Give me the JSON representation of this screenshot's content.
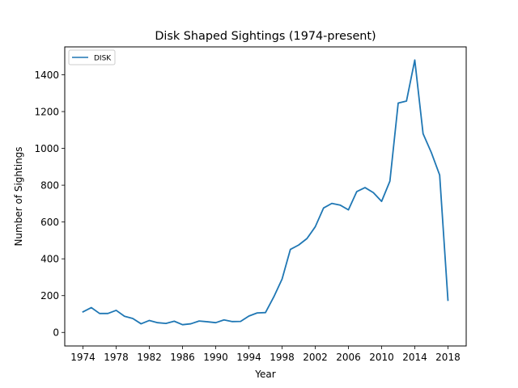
{
  "chart_data": {
    "type": "line",
    "title": "Disk Shaped Sightings (1974-present)",
    "xlabel": "Year",
    "ylabel": "Number of Sightings",
    "xlim": [
      1971.8,
      2020.2
    ],
    "ylim": [
      -73.5,
      1551.5
    ],
    "xticks": [
      1974,
      1978,
      1982,
      1986,
      1990,
      1994,
      1998,
      2002,
      2006,
      2010,
      2014,
      2018
    ],
    "yticks": [
      0,
      200,
      400,
      600,
      800,
      1000,
      1200,
      1400
    ],
    "grid": false,
    "legend_position": "top-left",
    "series": [
      {
        "name": "DISK",
        "color": "#1f77b4",
        "x": [
          1974,
          1975,
          1976,
          1977,
          1978,
          1979,
          1980,
          1981,
          1982,
          1983,
          1984,
          1985,
          1986,
          1987,
          1988,
          1989,
          1990,
          1991,
          1992,
          1993,
          1994,
          1995,
          1996,
          1997,
          1998,
          1999,
          2000,
          2001,
          2002,
          2003,
          2004,
          2005,
          2006,
          2007,
          2008,
          2009,
          2010,
          2011,
          2012,
          2013,
          2014,
          2015,
          2016,
          2017,
          2018
        ],
        "y": [
          112,
          135,
          103,
          103,
          120,
          88,
          76,
          47,
          65,
          53,
          49,
          61,
          42,
          47,
          62,
          58,
          53,
          68,
          59,
          60,
          89,
          106,
          108,
          193,
          290,
          451,
          475,
          510,
          574,
          676,
          701,
          692,
          666,
          765,
          787,
          760,
          712,
          822,
          1246,
          1257,
          1480,
          1080,
          977,
          855,
          175
        ]
      }
    ]
  }
}
